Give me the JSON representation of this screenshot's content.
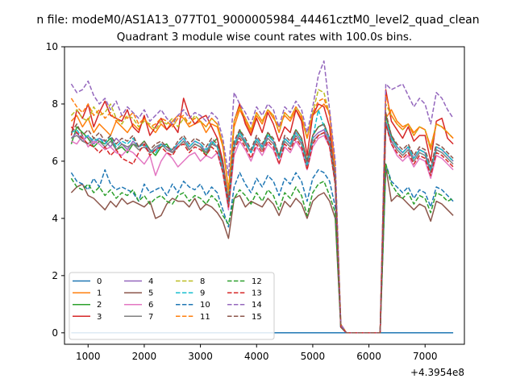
{
  "chart_data": {
    "type": "line",
    "suptitle": "n file: modeM0/AS1A13_077T01_9000005984_44461cztM0_level2_quad_clean",
    "title": "Quadrant 3 module wise count rates with 100.0s bins.",
    "xlabel": "",
    "ylabel": "",
    "x_offset_label": "+4.3954e8",
    "xlim": [
      580,
      7700
    ],
    "ylim": [
      -0.4,
      10
    ],
    "xticks": [
      1000,
      2000,
      3000,
      4000,
      5000,
      6000,
      7000
    ],
    "yticks": [
      0,
      2,
      4,
      6,
      8,
      10
    ],
    "grid": false,
    "legend": {
      "placement": "lower-left",
      "columns": 4,
      "entries": [
        "0",
        "1",
        "2",
        "3",
        "4",
        "5",
        "6",
        "7",
        "8",
        "9",
        "10",
        "11",
        "12",
        "13",
        "14",
        "15"
      ]
    },
    "x_start": 700,
    "x_step": 100,
    "series": [
      {
        "name": "0",
        "color": "#1f77b4",
        "style": "solid",
        "values": [
          0,
          0,
          0,
          0,
          0,
          0,
          0,
          0,
          0,
          0,
          0,
          0,
          0,
          0,
          0,
          0,
          0,
          0,
          0,
          0,
          0,
          0,
          0,
          0,
          0,
          0,
          0,
          0,
          0,
          0,
          0,
          0,
          0,
          0,
          0,
          0,
          0,
          0,
          0,
          0,
          0,
          0,
          0,
          0,
          0,
          0,
          0,
          0,
          0,
          0,
          0,
          0,
          0,
          0,
          0,
          0,
          0,
          0,
          0,
          0,
          0,
          0,
          0,
          0,
          0,
          0,
          0,
          0,
          0
        ]
      },
      {
        "name": "1",
        "color": "#ff7f0e",
        "style": "solid",
        "values": [
          7.4,
          7.6,
          7.2,
          7.5,
          7.0,
          7.3,
          7.1,
          6.9,
          7.4,
          7.2,
          7.0,
          7.3,
          7.1,
          7.5,
          7.2,
          7.0,
          7.3,
          7.1,
          7.4,
          7.6,
          7.5,
          7.2,
          7.3,
          7.4,
          7.0,
          7.3,
          7.2,
          6.5,
          5.0,
          7.2,
          7.8,
          7.4,
          7.0,
          7.6,
          7.3,
          7.8,
          7.5,
          7.2,
          7.6,
          7.4,
          7.8,
          7.5,
          6.8,
          7.6,
          7.8,
          8.0,
          7.7,
          5.6,
          0.3,
          0,
          0,
          0,
          0,
          0,
          0,
          0,
          7.5,
          7.8,
          7.4,
          7.2,
          7.3,
          7.0,
          7.2,
          7.1,
          6.5,
          7.3,
          7.2,
          7.0,
          6.8
        ]
      },
      {
        "name": "2",
        "color": "#2ca02c",
        "style": "solid",
        "values": [
          6.6,
          7.2,
          7.0,
          6.8,
          6.5,
          6.7,
          6.6,
          6.8,
          6.4,
          6.5,
          6.3,
          6.6,
          6.5,
          6.7,
          6.4,
          6.2,
          6.5,
          6.6,
          6.3,
          6.5,
          6.7,
          6.4,
          6.6,
          6.5,
          6.2,
          6.6,
          6.8,
          5.8,
          4.5,
          6.5,
          7.1,
          6.6,
          6.3,
          6.8,
          6.5,
          7.0,
          6.7,
          6.2,
          6.8,
          6.6,
          7.1,
          6.8,
          6.0,
          6.9,
          7.2,
          7.3,
          6.8,
          5.4,
          0.2,
          0,
          0,
          0,
          0,
          0,
          0,
          0,
          7.6,
          6.9,
          6.5,
          6.3,
          6.5,
          6.1,
          6.4,
          6.3,
          5.7,
          6.5,
          6.4,
          6.2,
          6.0
        ]
      },
      {
        "name": "3",
        "color": "#d62728",
        "style": "solid",
        "values": [
          6.9,
          7.8,
          7.5,
          8.0,
          7.2,
          7.7,
          8.1,
          7.6,
          7.5,
          7.4,
          7.8,
          7.2,
          7.0,
          7.6,
          6.9,
          7.2,
          7.5,
          7.1,
          7.3,
          7.0,
          8.2,
          7.6,
          7.3,
          7.5,
          7.6,
          7.2,
          6.8,
          6.0,
          4.6,
          7.4,
          8.0,
          7.3,
          6.9,
          7.5,
          7.0,
          7.7,
          7.3,
          6.7,
          7.2,
          7.0,
          7.8,
          7.4,
          6.2,
          7.6,
          8.0,
          7.9,
          7.2,
          5.2,
          0.2,
          0,
          0,
          0,
          0,
          0,
          0,
          0,
          8.5,
          7.4,
          7.1,
          6.8,
          7.2,
          6.7,
          6.9,
          6.9,
          6.0,
          7.4,
          7.5,
          6.8,
          6.6
        ]
      },
      {
        "name": "4",
        "color": "#9467bd",
        "style": "solid",
        "values": [
          6.8,
          7.0,
          6.7,
          6.9,
          6.6,
          6.8,
          6.7,
          6.5,
          6.8,
          6.6,
          6.4,
          6.7,
          6.5,
          6.6,
          6.3,
          6.4,
          6.6,
          6.5,
          6.3,
          6.6,
          6.8,
          6.5,
          6.7,
          6.6,
          6.3,
          6.7,
          6.5,
          5.8,
          4.4,
          6.6,
          7.0,
          6.7,
          6.3,
          6.8,
          6.5,
          6.9,
          6.7,
          6.1,
          6.8,
          6.6,
          7.0,
          6.7,
          5.9,
          6.8,
          7.0,
          7.1,
          6.7,
          5.3,
          0.2,
          0,
          0,
          0,
          0,
          0,
          0,
          0,
          7.4,
          6.8,
          6.5,
          6.3,
          6.5,
          6.1,
          6.4,
          6.3,
          5.7,
          6.5,
          6.4,
          6.2,
          6.0
        ]
      },
      {
        "name": "5",
        "color": "#8c564b",
        "style": "solid",
        "values": [
          4.9,
          5.1,
          5.2,
          4.8,
          4.7,
          4.5,
          4.3,
          4.6,
          4.4,
          4.7,
          4.5,
          4.6,
          4.5,
          4.4,
          4.6,
          4.0,
          4.1,
          4.5,
          4.7,
          4.6,
          4.6,
          4.4,
          4.7,
          4.3,
          4.5,
          4.4,
          4.2,
          3.9,
          3.3,
          4.7,
          4.8,
          4.4,
          4.6,
          4.5,
          4.4,
          4.7,
          4.5,
          4.1,
          4.6,
          4.4,
          4.7,
          4.5,
          4.0,
          4.6,
          4.8,
          4.9,
          4.6,
          4.0,
          0.2,
          0,
          0,
          0,
          0,
          0,
          0,
          0,
          5.8,
          4.6,
          4.8,
          4.7,
          4.5,
          4.3,
          4.5,
          4.4,
          3.9,
          4.6,
          4.5,
          4.3,
          4.1
        ]
      },
      {
        "name": "6",
        "color": "#e377c2",
        "style": "solid",
        "values": [
          6.7,
          6.6,
          6.9,
          6.5,
          6.7,
          6.6,
          6.4,
          6.5,
          6.3,
          6.2,
          6.4,
          6.3,
          6.1,
          5.9,
          6.2,
          5.5,
          6.0,
          6.3,
          6.1,
          5.8,
          6.0,
          6.2,
          6.3,
          6.0,
          6.2,
          6.1,
          6.3,
          5.6,
          4.3,
          6.2,
          6.7,
          6.4,
          6.0,
          6.5,
          6.2,
          6.6,
          6.4,
          5.9,
          6.5,
          6.3,
          6.7,
          6.4,
          5.7,
          6.5,
          6.8,
          6.9,
          6.5,
          5.2,
          0.2,
          0,
          0,
          0,
          0,
          0,
          0,
          0,
          7.3,
          6.6,
          6.2,
          6.0,
          6.2,
          5.8,
          6.1,
          6.0,
          5.4,
          6.2,
          6.1,
          5.9,
          5.7
        ]
      },
      {
        "name": "7",
        "color": "#7f7f7f",
        "style": "solid",
        "values": [
          6.8,
          6.9,
          6.7,
          6.6,
          6.8,
          6.7,
          6.5,
          6.7,
          6.4,
          6.6,
          6.5,
          6.6,
          6.4,
          6.5,
          6.3,
          6.5,
          6.6,
          6.4,
          6.3,
          6.5,
          6.7,
          6.4,
          6.6,
          6.5,
          6.3,
          6.6,
          6.5,
          5.7,
          4.4,
          6.5,
          6.9,
          6.6,
          6.3,
          6.7,
          6.4,
          6.8,
          6.6,
          6.1,
          6.7,
          6.5,
          6.9,
          6.6,
          5.9,
          6.7,
          6.9,
          7.0,
          6.6,
          5.2,
          0.2,
          0,
          0,
          0,
          0,
          0,
          0,
          0,
          7.3,
          6.7,
          6.4,
          6.2,
          6.4,
          6.0,
          6.3,
          6.2,
          5.6,
          6.4,
          6.3,
          6.1,
          5.9
        ]
      },
      {
        "name": "8",
        "color": "#bcbd22",
        "style": "dashed",
        "values": [
          7.6,
          7.8,
          7.5,
          7.4,
          7.9,
          7.6,
          7.7,
          8.0,
          7.5,
          7.3,
          7.6,
          7.5,
          7.2,
          7.4,
          7.3,
          7.1,
          7.4,
          7.3,
          7.5,
          7.2,
          7.5,
          7.3,
          7.6,
          7.4,
          7.2,
          7.5,
          7.3,
          6.6,
          4.9,
          7.4,
          7.9,
          7.5,
          7.1,
          7.7,
          7.4,
          7.8,
          7.6,
          7.0,
          7.7,
          7.5,
          7.9,
          7.6,
          6.8,
          7.7,
          8.5,
          8.4,
          7.6,
          5.9,
          0.3,
          0,
          0,
          0,
          0,
          0,
          0,
          0,
          8.0,
          7.6,
          7.3,
          7.1,
          7.3,
          6.9,
          7.2,
          7.1,
          6.4,
          7.3,
          7.2,
          7.0,
          6.8
        ]
      },
      {
        "name": "9",
        "color": "#17becf",
        "style": "dashed",
        "values": [
          7.0,
          7.1,
          6.8,
          6.9,
          6.7,
          6.8,
          6.6,
          6.9,
          6.5,
          6.7,
          6.6,
          6.8,
          6.5,
          6.6,
          6.4,
          6.3,
          6.6,
          6.5,
          6.4,
          6.6,
          6.8,
          6.5,
          6.7,
          6.6,
          6.4,
          6.7,
          6.5,
          5.7,
          4.5,
          6.6,
          7.0,
          6.7,
          6.3,
          6.8,
          6.5,
          6.9,
          6.7,
          6.1,
          6.8,
          6.6,
          7.0,
          6.7,
          5.8,
          6.8,
          7.8,
          7.2,
          6.8,
          5.3,
          0.2,
          0,
          0,
          0,
          0,
          0,
          0,
          0,
          7.4,
          6.8,
          6.5,
          6.3,
          6.5,
          6.1,
          6.4,
          6.3,
          5.7,
          6.5,
          6.4,
          6.2,
          6.0
        ]
      },
      {
        "name": "10",
        "color": "#1f77b4",
        "style": "dashed",
        "values": [
          5.6,
          5.3,
          5.2,
          5.0,
          5.4,
          5.1,
          5.7,
          5.2,
          5.0,
          5.1,
          5.0,
          4.9,
          4.6,
          5.2,
          4.9,
          5.0,
          5.1,
          4.8,
          5.2,
          4.9,
          5.3,
          5.1,
          5.0,
          5.2,
          4.8,
          5.1,
          4.9,
          4.3,
          3.7,
          5.1,
          5.6,
          5.2,
          4.9,
          5.4,
          5.1,
          5.5,
          5.3,
          4.8,
          5.4,
          5.2,
          5.6,
          5.3,
          4.6,
          5.4,
          5.7,
          5.6,
          5.3,
          4.4,
          0.2,
          0,
          0,
          0,
          0,
          0,
          0,
          0,
          5.9,
          5.3,
          5.1,
          4.9,
          5.1,
          4.7,
          5.0,
          4.9,
          4.4,
          5.1,
          5.0,
          4.8,
          4.6
        ]
      },
      {
        "name": "11",
        "color": "#ff7f0e",
        "style": "dashed",
        "values": [
          8.2,
          7.9,
          7.7,
          8.0,
          7.6,
          7.8,
          7.5,
          7.7,
          7.4,
          7.6,
          7.5,
          7.7,
          7.3,
          7.5,
          7.2,
          7.3,
          7.5,
          7.4,
          7.2,
          7.5,
          7.6,
          7.3,
          7.5,
          7.4,
          7.2,
          7.5,
          7.3,
          6.6,
          5.0,
          7.4,
          7.9,
          7.5,
          7.1,
          7.7,
          7.4,
          7.8,
          7.6,
          7.0,
          7.7,
          7.5,
          7.9,
          7.6,
          6.8,
          7.7,
          8.1,
          8.2,
          7.6,
          5.9,
          0.3,
          0,
          0,
          0,
          0,
          0,
          0,
          0,
          8.3,
          7.6,
          7.3,
          7.1,
          7.3,
          6.9,
          7.2,
          7.1,
          6.4,
          7.3,
          7.2,
          7.0,
          6.8
        ]
      },
      {
        "name": "12",
        "color": "#2ca02c",
        "style": "dashed",
        "values": [
          5.4,
          5.1,
          5.0,
          5.2,
          4.9,
          5.1,
          4.8,
          5.0,
          4.7,
          4.9,
          4.8,
          5.0,
          4.6,
          4.8,
          4.5,
          4.7,
          4.8,
          4.6,
          4.5,
          4.8,
          4.9,
          4.6,
          4.8,
          4.7,
          4.5,
          4.8,
          4.6,
          4.1,
          3.8,
          4.7,
          5.0,
          4.8,
          4.5,
          4.9,
          4.6,
          5.0,
          4.8,
          4.3,
          4.9,
          4.7,
          5.1,
          4.8,
          4.1,
          4.9,
          5.2,
          5.3,
          4.8,
          4.2,
          0.2,
          0,
          0,
          0,
          0,
          0,
          0,
          0,
          5.9,
          5.2,
          4.9,
          4.7,
          4.9,
          4.5,
          4.8,
          4.7,
          4.2,
          4.9,
          4.8,
          4.6,
          4.7
        ]
      },
      {
        "name": "13",
        "color": "#d62728",
        "style": "dashed",
        "values": [
          7.2,
          7.0,
          6.8,
          6.6,
          6.5,
          6.3,
          6.5,
          6.2,
          6.4,
          6.1,
          6.0,
          5.9,
          6.3,
          6.6,
          6.2,
          6.4,
          6.5,
          6.3,
          6.2,
          6.5,
          6.6,
          6.3,
          6.5,
          6.4,
          6.2,
          6.5,
          6.3,
          5.6,
          4.4,
          6.4,
          6.8,
          6.5,
          6.1,
          6.6,
          6.3,
          6.7,
          6.5,
          5.9,
          6.6,
          6.4,
          6.8,
          6.5,
          5.7,
          6.6,
          6.9,
          7.0,
          6.5,
          5.2,
          0.2,
          0,
          0,
          0,
          0,
          0,
          0,
          0,
          7.3,
          6.6,
          6.3,
          6.1,
          6.3,
          5.9,
          6.2,
          6.1,
          5.5,
          6.3,
          6.2,
          6.0,
          5.8
        ]
      },
      {
        "name": "14",
        "color": "#9467bd",
        "style": "dashed",
        "values": [
          8.7,
          8.4,
          8.5,
          8.8,
          8.3,
          8.0,
          8.2,
          7.8,
          8.1,
          7.6,
          7.9,
          7.7,
          7.5,
          7.8,
          7.4,
          7.6,
          7.8,
          7.5,
          7.3,
          7.6,
          7.8,
          7.5,
          7.7,
          7.6,
          7.4,
          7.7,
          7.5,
          6.8,
          5.5,
          8.4,
          8.0,
          7.7,
          7.3,
          7.9,
          7.6,
          8.0,
          7.8,
          7.2,
          7.9,
          7.7,
          8.1,
          7.8,
          7.0,
          7.9,
          9.0,
          9.5,
          7.8,
          6.0,
          0.3,
          0,
          0,
          0,
          0,
          0,
          0,
          0,
          8.7,
          8.5,
          8.6,
          8.7,
          8.3,
          7.9,
          8.2,
          8.0,
          7.3,
          8.4,
          8.2,
          7.8,
          7.5
        ]
      },
      {
        "name": "15",
        "color": "#8c564b",
        "style": "dashed",
        "values": [
          7.0,
          7.3,
          6.9,
          7.1,
          6.8,
          7.0,
          6.7,
          6.9,
          6.6,
          6.8,
          6.7,
          6.9,
          6.5,
          6.7,
          6.4,
          6.6,
          6.7,
          6.5,
          6.4,
          6.7,
          6.9,
          6.6,
          6.8,
          6.7,
          6.5,
          6.8,
          6.6,
          5.9,
          4.6,
          6.7,
          7.1,
          6.8,
          6.4,
          6.9,
          6.6,
          7.0,
          6.8,
          6.2,
          6.9,
          6.7,
          7.1,
          6.8,
          6.0,
          6.9,
          7.2,
          7.3,
          6.8,
          5.4,
          0.2,
          0,
          0,
          0,
          0,
          0,
          0,
          0,
          7.7,
          6.9,
          6.6,
          6.4,
          6.6,
          6.2,
          6.5,
          6.4,
          5.8,
          6.6,
          6.5,
          6.3,
          6.1
        ]
      }
    ]
  }
}
